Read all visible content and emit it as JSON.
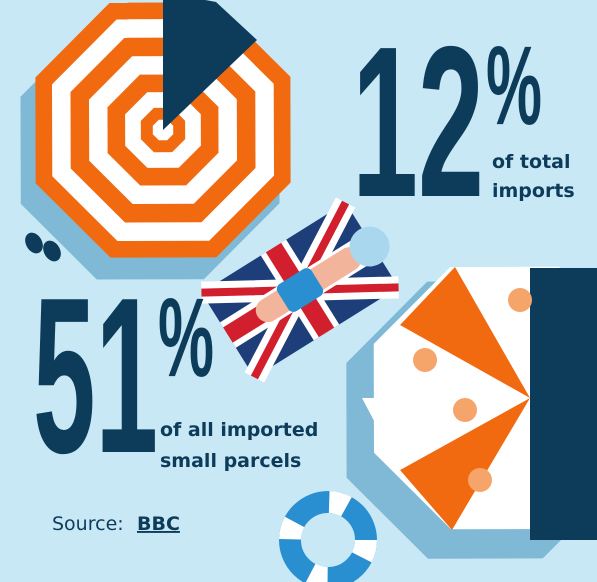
{
  "stats": [
    {
      "number": "12",
      "unit": "%",
      "caption": [
        "of total",
        "imports"
      ]
    },
    {
      "number": "51",
      "unit": "%",
      "caption": [
        "of all imported",
        "small parcels"
      ]
    }
  ],
  "source": {
    "label": "Source:",
    "link": "BBC"
  }
}
